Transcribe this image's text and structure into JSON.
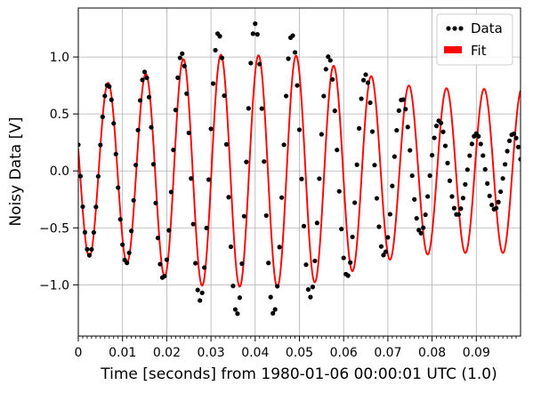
{
  "chart_data": {
    "type": "scatter",
    "title": "",
    "xlabel": "Time [seconds] from 1980-01-06 00:00:01 UTC (1.0)",
    "ylabel": "Noisy Data [V]",
    "xlim": [
      0,
      0.1
    ],
    "ylim": [
      -1.45,
      1.43
    ],
    "grid": true,
    "legend_position": "top-right",
    "x_ticks": [
      {
        "value": 0,
        "label": "0"
      },
      {
        "value": 0.01,
        "label": "0.01"
      },
      {
        "value": 0.02,
        "label": "0.02"
      },
      {
        "value": 0.03,
        "label": "0.03"
      },
      {
        "value": 0.04,
        "label": "0.04"
      },
      {
        "value": 0.05,
        "label": "0.05"
      },
      {
        "value": 0.06,
        "label": "0.06"
      },
      {
        "value": 0.07,
        "label": "0.07"
      },
      {
        "value": 0.08,
        "label": "0.08"
      },
      {
        "value": 0.09,
        "label": "0.09"
      }
    ],
    "y_ticks": [
      {
        "value": 1.0,
        "label": "1.0"
      },
      {
        "value": 0.5,
        "label": "0.5"
      },
      {
        "value": 0.0,
        "label": "0.0"
      },
      {
        "value": -0.5,
        "label": "−0.5"
      },
      {
        "value": -1.0,
        "label": "−1.0"
      }
    ],
    "series": [
      {
        "name": "Data",
        "kind": "scatter",
        "color": "#000000",
        "sample_step": 0.0005,
        "frequency_hz": 120,
        "phase_rad": 2.826,
        "envelope": {
          "t": [
            0,
            0.005,
            0.014,
            0.022,
            0.03,
            0.035,
            0.039,
            0.043,
            0.047,
            0.052,
            0.056,
            0.064,
            0.072,
            0.08,
            0.088,
            0.096,
            0.1
          ],
          "amp": [
            0.74,
            0.74,
            0.85,
            1.0,
            1.2,
            1.25,
            1.3,
            1.27,
            1.23,
            1.12,
            1.02,
            0.87,
            0.67,
            0.48,
            0.34,
            0.33,
            0.33
          ]
        },
        "offset": {
          "t": [
            0,
            0.07,
            0.08,
            0.09,
            0.1
          ],
          "val": [
            0,
            0,
            -0.01,
            -0.01,
            0
          ]
        }
      },
      {
        "name": "Fit",
        "kind": "line",
        "color": "#ff0000",
        "frequency_hz": 117.6,
        "phase_rad": 2.88,
        "envelope": {
          "t": [
            0,
            0.005,
            0.014,
            0.022,
            0.03,
            0.035,
            0.039,
            0.043,
            0.047,
            0.052,
            0.056,
            0.064,
            0.072,
            0.08,
            0.088,
            0.096,
            0.1
          ],
          "amp": [
            0.75,
            0.76,
            0.83,
            0.97,
            1.02,
            1.02,
            1.01,
            1.02,
            1.02,
            1.0,
            0.94,
            0.86,
            0.76,
            0.73,
            0.72,
            0.72,
            0.72
          ]
        }
      }
    ]
  }
}
